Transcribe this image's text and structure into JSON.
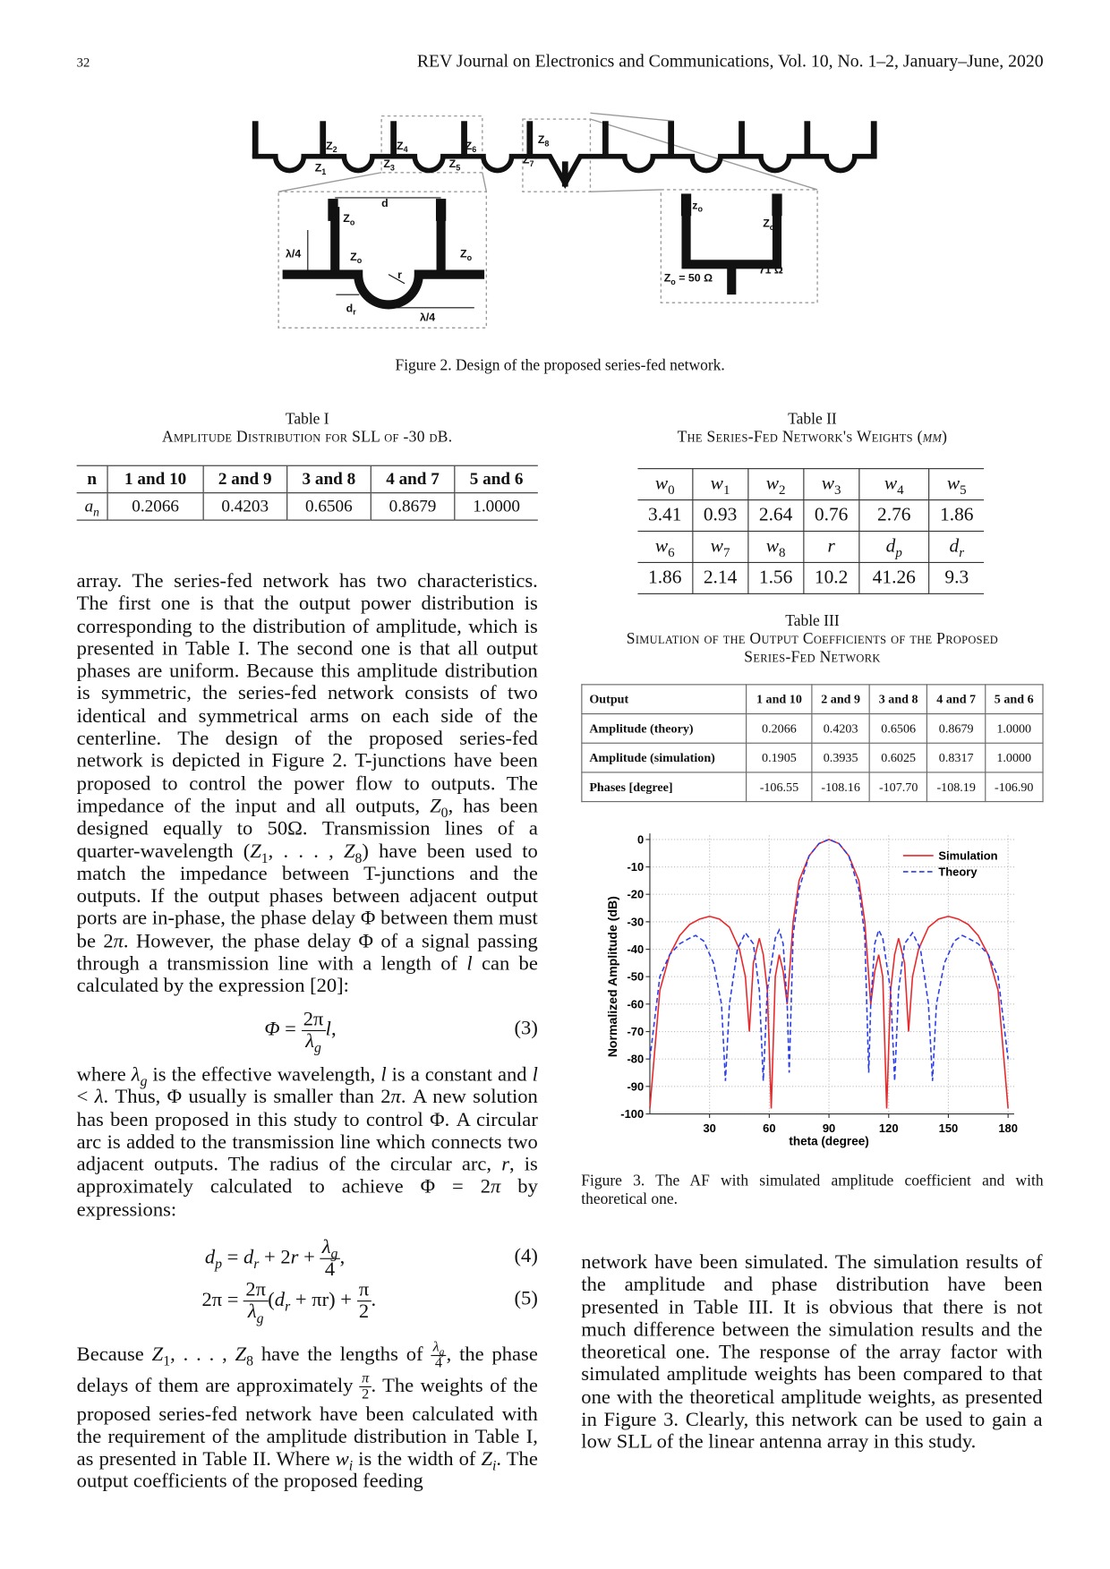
{
  "header": {
    "page_number": "32",
    "journal": "REV Journal on Electronics and Communications, Vol. 10, No. 1–2, January–June, 2020"
  },
  "figure2": {
    "labels": [
      {
        "text": "Z",
        "sub": "1"
      },
      {
        "text": "Z",
        "sub": "2"
      },
      {
        "text": "Z",
        "sub": "3"
      },
      {
        "text": "Z",
        "sub": "4"
      },
      {
        "text": "Z",
        "sub": "5"
      },
      {
        "text": "Z",
        "sub": "6"
      },
      {
        "text": "Z",
        "sub": "7"
      },
      {
        "text": "Z",
        "sub": "8"
      },
      {
        "text": "Z",
        "sub": "o"
      },
      {
        "text": "d"
      },
      {
        "text": "λ/4"
      },
      {
        "text": "Z",
        "sub": "o"
      },
      {
        "text": "Z",
        "sub": "o"
      },
      {
        "text": "r"
      },
      {
        "text": "d",
        "sub": "r"
      },
      {
        "text": "λ/4"
      },
      {
        "text": "z",
        "sub": "o"
      },
      {
        "text": "Z",
        "sub": "o"
      },
      {
        "text": "Z",
        "sub": "o",
        "after": " = 50 Ω"
      },
      {
        "text": "71 Ω"
      }
    ],
    "caption": "Figure 2. Design of the proposed series-fed network."
  },
  "table1": {
    "title": "Table I",
    "caption": [
      "Amplitude Distribution for SLL of -30 dB."
    ],
    "rows": [
      [
        "n",
        "1 and 10",
        "2 and 9",
        "3 and 8",
        "4 and 7",
        "5 and 6"
      ],
      [
        {
          "text": "a",
          "sub": "n",
          "italic": true
        },
        "0.2066",
        "0.4203",
        "0.6506",
        "0.8679",
        "1.0000"
      ]
    ]
  },
  "table2": {
    "title": "Table II",
    "caption": [
      "The Series-Fed Network's Weights (",
      {
        "text": "mm",
        "italic": true
      },
      ")"
    ],
    "rows": [
      [
        {
          "text": "w",
          "sub": "0",
          "italic": true
        },
        {
          "text": "w",
          "sub": "1",
          "italic": true
        },
        {
          "text": "w",
          "sub": "2",
          "italic": true
        },
        {
          "text": "w",
          "sub": "3",
          "italic": true
        },
        {
          "text": "w",
          "sub": "4",
          "italic": true
        },
        {
          "text": "w",
          "sub": "5",
          "italic": true
        }
      ],
      [
        "3.41",
        "0.93",
        "2.64",
        "0.76",
        "2.76",
        "1.86"
      ],
      [
        {
          "text": "w",
          "sub": "6",
          "italic": true
        },
        {
          "text": "w",
          "sub": "7",
          "italic": true
        },
        {
          "text": "w",
          "sub": "8",
          "italic": true
        },
        {
          "text": "r",
          "italic": true
        },
        {
          "text": "d",
          "sub": "p",
          "italic": true
        },
        {
          "text": "d",
          "sub": "r",
          "italic": true
        }
      ],
      [
        "1.86",
        "2.14",
        "1.56",
        "10.2",
        "41.26",
        "9.3"
      ]
    ]
  },
  "table3": {
    "title": "Table III",
    "caption": [
      "Simulation of the Output Coefficients of the Proposed Series-Fed Network"
    ],
    "rows": [
      [
        "Output",
        "1 and 10",
        "2 and 9",
        "3 and 8",
        "4 and 7",
        "5 and 6"
      ],
      [
        "Amplitude (theory)",
        "0.2066",
        "0.4203",
        "0.6506",
        "0.8679",
        "1.0000"
      ],
      [
        "Amplitude (simulation)",
        "0.1905",
        "0.3935",
        "0.6025",
        "0.8317",
        "1.0000"
      ],
      [
        "Phases [degree]",
        "-106.55",
        "-108.16",
        "-107.70",
        "-108.19",
        "-106.90"
      ]
    ]
  },
  "chart_data": {
    "type": "line",
    "xlabel": "theta (degree)",
    "ylabel": "Normalized Amplitude (dB)",
    "xlim": [
      0,
      180
    ],
    "xticks": [
      30,
      60,
      90,
      120,
      150,
      180
    ],
    "ylim": [
      -100,
      0
    ],
    "yticks": [
      0,
      -10,
      -20,
      -30,
      -40,
      -50,
      -60,
      -70,
      -80,
      -90,
      -100
    ],
    "grid": true,
    "legend": "upper right",
    "series": [
      {
        "name": "Simulation",
        "color": "#e8282b",
        "line_style": "solid",
        "x": [
          0,
          5,
          10,
          15,
          20,
          25,
          30,
          35,
          40,
          45,
          48,
          50,
          52,
          55,
          57,
          59,
          61,
          63,
          65,
          67,
          69,
          70,
          72,
          75,
          80,
          85,
          90,
          95,
          100,
          105,
          108,
          110,
          111,
          113,
          115,
          117,
          119,
          121,
          123,
          125,
          128,
          130,
          132,
          135,
          140,
          145,
          150,
          155,
          160,
          165,
          170,
          175,
          180
        ],
        "values": [
          -98,
          -55,
          -42,
          -35,
          -31,
          -29,
          -28,
          -29,
          -32,
          -40,
          -50,
          -70,
          -45,
          -36,
          -42,
          -55,
          -98,
          -50,
          -42,
          -48,
          -60,
          -50,
          -30,
          -15,
          -6,
          -1.5,
          0,
          -1.5,
          -6,
          -15,
          -30,
          -50,
          -60,
          -48,
          -42,
          -50,
          -98,
          -55,
          -42,
          -36,
          -45,
          -70,
          -50,
          -40,
          -32,
          -29,
          -28,
          -29,
          -31,
          -35,
          -42,
          -55,
          -98
        ]
      },
      {
        "name": "Theory",
        "color": "#2b3ee8",
        "line_style": "dashed",
        "x": [
          0,
          5,
          10,
          15,
          20,
          23,
          27,
          32,
          36,
          38,
          40,
          44,
          48,
          52,
          55,
          57,
          59,
          63,
          65,
          67,
          69,
          70,
          72,
          75,
          80,
          85,
          90,
          95,
          100,
          105,
          108,
          110,
          111,
          113,
          115,
          117,
          121,
          123,
          125,
          128,
          132,
          136,
          140,
          142,
          144,
          148,
          153,
          157,
          160,
          165,
          170,
          175,
          180
        ],
        "values": [
          -80,
          -50,
          -42,
          -38,
          -36,
          -35,
          -37,
          -45,
          -60,
          -88,
          -60,
          -40,
          -34,
          -38,
          -55,
          -88,
          -55,
          -36,
          -33,
          -38,
          -60,
          -85,
          -35,
          -18,
          -6,
          -1.5,
          0,
          -1.5,
          -6,
          -18,
          -35,
          -85,
          -60,
          -38,
          -33,
          -36,
          -55,
          -88,
          -55,
          -38,
          -34,
          -40,
          -60,
          -88,
          -60,
          -45,
          -37,
          -35,
          -36,
          -38,
          -42,
          -50,
          -80
        ]
      }
    ],
    "caption": "Figure 3. The AF with simulated amplitude coefficient and with theoretical one."
  },
  "paragraphs": [
    [
      "array. The series-fed network has two characteristics. The first one is that the output power distribution is corresponding to the distribution of amplitude, which is presented in Table I. The second one is that all output phases are uniform. Because this amplitude distribution is symmetric, the series-fed network consists of two identical and symmetrical arms on each side of the centerline. The design of the proposed series-fed network is depicted in Figure 2. T-junctions have been proposed to control the power flow to outputs. The impedance of the input and all outputs, ",
      {
        "text": "Z",
        "sub": "0",
        "italic": true
      },
      ", has been designed equally to 50Ω. Transmission lines of a quarter-wavelength (",
      {
        "text": "Z",
        "sub": "1",
        "italic": true
      },
      ", . . . , ",
      {
        "text": "Z",
        "sub": "8",
        "italic": true
      },
      ") have been used to match the impedance between T-junctions and the outputs. If the output phases between adjacent output ports are in-phase, the phase delay Φ between them must be 2",
      {
        "text": "π",
        "italic": true
      },
      ". However, the phase delay Φ of a signal passing through a transmission line with a length of ",
      {
        "text": "l",
        "italic": true
      },
      " can be calculated by the expression [20]:"
    ],
    [
      "where ",
      {
        "text": "λ",
        "sub": "g",
        "italic": true
      },
      " is the effective wavelength, ",
      {
        "text": "l",
        "italic": true
      },
      " is a constant and ",
      {
        "text": "l",
        "italic": true
      },
      " < ",
      {
        "text": "λ",
        "italic": true
      },
      ". Thus, Φ usually is smaller than 2",
      {
        "text": "π",
        "italic": true
      },
      ". A new solution has been proposed in this study to control Φ. A circular arc is added to the transmission line which connects two adjacent outputs. The radius of the circular arc, ",
      {
        "text": "r",
        "italic": true
      },
      ", is approximately calculated to achieve Φ = 2",
      {
        "text": "π",
        "italic": true
      },
      " by expressions:"
    ],
    [
      "Because ",
      {
        "text": "Z",
        "sub": "1",
        "italic": true
      },
      ", . . . , ",
      {
        "text": "Z",
        "sub": "8",
        "italic": true
      },
      " have the lengths of ",
      {
        "num": {
          "text": "λ",
          "sub": "g",
          "italic": true
        },
        "den": "4"
      },
      ", the phase delays of them are approximately ",
      {
        "num": {
          "text": "π",
          "italic": true
        },
        "den": "2"
      },
      ". The weights of the proposed series-fed network have been calculated with the requirement of the amplitude distribution in Table I, as presented in Table II. Where ",
      {
        "text": "w",
        "sub": "i",
        "italic": true
      },
      " is the width of ",
      {
        "text": "Z",
        "sub": "i",
        "italic": true
      },
      ". The output coefficients of the proposed feeding"
    ],
    [
      "network have been simulated. The simulation results of the amplitude and phase distribution have been presented in Table III. It is obvious that there is not much difference between the simulation results and the theoretical one. The response of the array factor with simulated amplitude weights has been compared to that one with the theoretical amplitude weights, as presented in Figure 3. Clearly, this network can be used to gain a low SLL of the linear antenna array in this study."
    ]
  ],
  "equations": [
    {
      "parts": [
        {
          "text": "Φ",
          "italic": true
        },
        " = ",
        {
          "num": "2π",
          "den": {
            "text": "λ",
            "sub": "g",
            "italic": true
          }
        },
        {
          "text": "l",
          "italic": true
        },
        ","
      ],
      "number": "(3)"
    },
    {
      "parts": [
        {
          "text": "d",
          "sub": "p",
          "italic": true
        },
        " = ",
        {
          "text": "d",
          "sub": "r",
          "italic": true
        },
        " + 2",
        {
          "text": "r",
          "italic": true
        },
        " + ",
        {
          "num": {
            "text": "λ",
            "sub": "g",
            "italic": true
          },
          "den": "4"
        },
        ","
      ],
      "number": "(4)"
    },
    {
      "parts": [
        "2π = ",
        {
          "num": "2π",
          "den": {
            "text": "λ",
            "sub": "g",
            "italic": true
          }
        },
        "(",
        {
          "text": "d",
          "sub": "r",
          "italic": true
        },
        " +  πr) + ",
        {
          "num": "π",
          "den": "2"
        },
        "."
      ],
      "number": "(5)"
    }
  ]
}
